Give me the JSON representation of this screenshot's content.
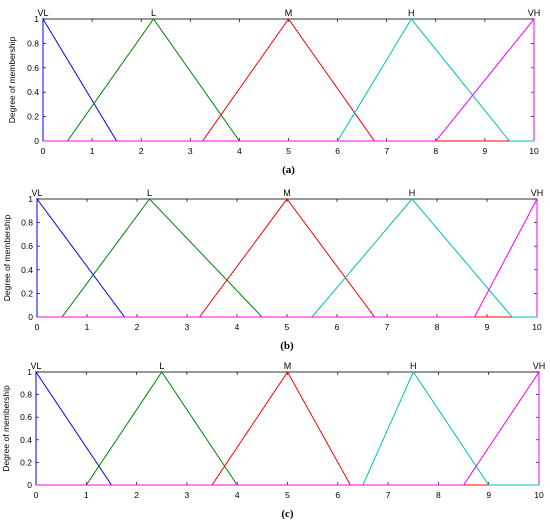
{
  "chart_data": [
    {
      "type": "line",
      "panel_label": "(a)",
      "ylabel": "Degree of membership",
      "xlim": [
        0,
        10
      ],
      "ylim": [
        0,
        1
      ],
      "xticks": [
        "0",
        "1",
        "2",
        "3",
        "4",
        "5",
        "6",
        "7",
        "8",
        "9",
        "10"
      ],
      "yticks": [
        "0",
        "0.2",
        "0.4",
        "0.6",
        "0.8",
        "1"
      ],
      "series": [
        {
          "name": "VL",
          "color": "#0000ff",
          "x": [
            0,
            0,
            1.5,
            10
          ],
          "y": [
            0,
            1,
            0,
            0
          ]
        },
        {
          "name": "L",
          "color": "#008000",
          "x": [
            0,
            0.5,
            2.25,
            4,
            10
          ],
          "y": [
            0,
            0,
            1,
            0,
            0
          ]
        },
        {
          "name": "M",
          "color": "#ff0000",
          "x": [
            0,
            3.25,
            5,
            6.75,
            10
          ],
          "y": [
            0,
            0,
            1,
            0,
            0
          ]
        },
        {
          "name": "H",
          "color": "#00bfbf",
          "x": [
            0,
            6,
            7.5,
            9.5,
            10
          ],
          "y": [
            0,
            0,
            1,
            0,
            0
          ]
        },
        {
          "name": "VH",
          "color": "#ff00ff",
          "x": [
            0,
            8,
            10,
            10
          ],
          "y": [
            0,
            0,
            1,
            0
          ]
        }
      ]
    },
    {
      "type": "line",
      "panel_label": "(b)",
      "ylabel": "Degree of membership",
      "xlim": [
        0,
        10
      ],
      "ylim": [
        0,
        1
      ],
      "xticks": [
        "0",
        "1",
        "2",
        "3",
        "4",
        "5",
        "6",
        "7",
        "8",
        "9",
        "10"
      ],
      "yticks": [
        "0",
        "0.2",
        "0.4",
        "0.6",
        "0.8",
        "1"
      ],
      "series": [
        {
          "name": "VL",
          "color": "#0000ff",
          "x": [
            0,
            0,
            1.75,
            10
          ],
          "y": [
            0,
            1,
            0,
            0
          ]
        },
        {
          "name": "L",
          "color": "#008000",
          "x": [
            0,
            0.5,
            2.25,
            4.5,
            10
          ],
          "y": [
            0,
            0,
            1,
            0,
            0
          ]
        },
        {
          "name": "M",
          "color": "#ff0000",
          "x": [
            0,
            3.25,
            5,
            6.75,
            10
          ],
          "y": [
            0,
            0,
            1,
            0,
            0
          ]
        },
        {
          "name": "H",
          "color": "#00bfbf",
          "x": [
            0,
            5.5,
            7.5,
            9.5,
            10
          ],
          "y": [
            0,
            0,
            1,
            0,
            0
          ]
        },
        {
          "name": "VH",
          "color": "#ff00ff",
          "x": [
            0,
            8.75,
            10,
            10
          ],
          "y": [
            0,
            0,
            1,
            0
          ]
        }
      ]
    },
    {
      "type": "line",
      "panel_label": "(c)",
      "ylabel": "Degree of membership",
      "xlim": [
        0,
        10
      ],
      "ylim": [
        0,
        1
      ],
      "xticks": [
        "0",
        "1",
        "2",
        "3",
        "4",
        "5",
        "6",
        "7",
        "8",
        "9",
        "10"
      ],
      "yticks": [
        "0",
        "0.2",
        "0.4",
        "0.6",
        "0.8",
        "1"
      ],
      "series": [
        {
          "name": "VL",
          "color": "#0000ff",
          "x": [
            0,
            0,
            1.5,
            10
          ],
          "y": [
            0,
            1,
            0,
            0
          ]
        },
        {
          "name": "L",
          "color": "#008000",
          "x": [
            0,
            1,
            2.5,
            4,
            10
          ],
          "y": [
            0,
            0,
            1,
            0,
            0
          ]
        },
        {
          "name": "M",
          "color": "#ff0000",
          "x": [
            0,
            3.5,
            5,
            6.25,
            10
          ],
          "y": [
            0,
            0,
            1,
            0,
            0
          ]
        },
        {
          "name": "H",
          "color": "#00bfbf",
          "x": [
            0,
            6.5,
            7.5,
            9,
            10
          ],
          "y": [
            0,
            0,
            1,
            0,
            0
          ]
        },
        {
          "name": "VH",
          "color": "#ff00ff",
          "x": [
            0,
            8.5,
            10,
            10
          ],
          "y": [
            0,
            0,
            1,
            0
          ]
        }
      ]
    }
  ]
}
